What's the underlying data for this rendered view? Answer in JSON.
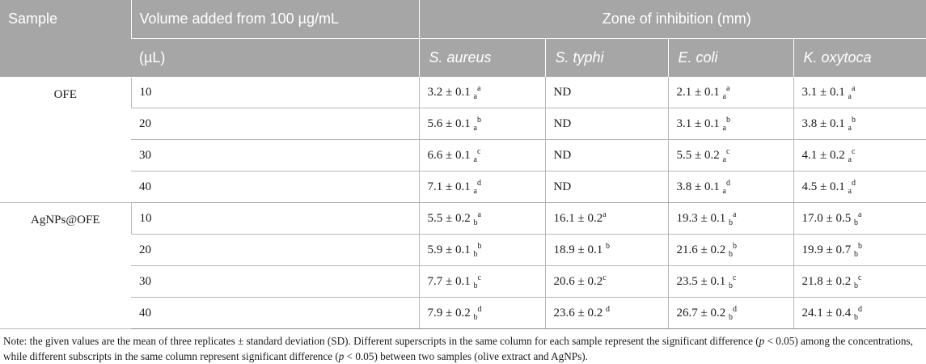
{
  "header": {
    "sample": "Sample",
    "volume_line1": "Volume added from 100 µg/mL",
    "volume_line2": "(µL)",
    "zone": "Zone of inhibition (mm)",
    "organisms": [
      "S. aureus",
      "S. typhi",
      "E. coli",
      "K. oxytoca"
    ]
  },
  "groups": [
    {
      "sample": "OFE",
      "rows": [
        {
          "volume": "10",
          "cells": [
            {
              "v": "3.2 ± 0.1 ",
              "sub": "a",
              "sup": "a"
            },
            {
              "v": "ND",
              "sub": "",
              "sup": ""
            },
            {
              "v": "2.1 ± 0.1 ",
              "sub": "a",
              "sup": "a"
            },
            {
              "v": "3.1 ± 0.1 ",
              "sub": "a",
              "sup": "a"
            }
          ]
        },
        {
          "volume": "20",
          "cells": [
            {
              "v": "5.6 ± 0.1 ",
              "sub": "a",
              "sup": "b"
            },
            {
              "v": "ND",
              "sub": "",
              "sup": ""
            },
            {
              "v": "3.1 ± 0.1 ",
              "sub": "a",
              "sup": "b"
            },
            {
              "v": "3.8 ± 0.1 ",
              "sub": "a",
              "sup": "b"
            }
          ]
        },
        {
          "volume": "30",
          "cells": [
            {
              "v": "6.6 ± 0.1 ",
              "sub": "a",
              "sup": "c"
            },
            {
              "v": "ND",
              "sub": "",
              "sup": ""
            },
            {
              "v": "5.5 ± 0.2 ",
              "sub": "a",
              "sup": "c"
            },
            {
              "v": "4.1 ± 0.2 ",
              "sub": "a",
              "sup": "c"
            }
          ]
        },
        {
          "volume": "40",
          "cells": [
            {
              "v": "7.1 ± 0.1 ",
              "sub": "a",
              "sup": "d"
            },
            {
              "v": "ND",
              "sub": "",
              "sup": ""
            },
            {
              "v": "3.8 ± 0.1 ",
              "sub": "a",
              "sup": "d"
            },
            {
              "v": "4.5 ± 0.1 ",
              "sub": "a",
              "sup": "d"
            }
          ]
        }
      ]
    },
    {
      "sample": "AgNPs@OFE",
      "rows": [
        {
          "volume": "10",
          "cells": [
            {
              "v": "5.5 ± 0.2 ",
              "sub": "b",
              "sup": "a"
            },
            {
              "v": "16.1 ± 0.2",
              "sub": "",
              "sup": "a"
            },
            {
              "v": "19.3 ± 0.1 ",
              "sub": "b",
              "sup": "a"
            },
            {
              "v": "17.0 ± 0.5 ",
              "sub": "b",
              "sup": "a"
            }
          ]
        },
        {
          "volume": "20",
          "cells": [
            {
              "v": "5.9 ± 0.1 ",
              "sub": "b",
              "sup": "b"
            },
            {
              "v": "18.9 ± 0.1 ",
              "sub": "",
              "sup": "b"
            },
            {
              "v": "21.6 ± 0.2 ",
              "sub": "b",
              "sup": "b"
            },
            {
              "v": "19.9 ± 0.7 ",
              "sub": "b",
              "sup": "b"
            }
          ]
        },
        {
          "volume": "30",
          "cells": [
            {
              "v": "7.7 ± 0.1 ",
              "sub": "b",
              "sup": "c"
            },
            {
              "v": "20.6 ± 0.2",
              "sub": "",
              "sup": "c"
            },
            {
              "v": "23.5 ± 0.1 ",
              "sub": "b",
              "sup": "c"
            },
            {
              "v": "21.8 ± 0.2 ",
              "sub": "b",
              "sup": "c"
            }
          ]
        },
        {
          "volume": "40",
          "cells": [
            {
              "v": "7.9 ± 0.2 ",
              "sub": "b",
              "sup": "d"
            },
            {
              "v": "23.6 ± 0.2 ",
              "sub": "",
              "sup": "d"
            },
            {
              "v": "26.7 ± 0.2 ",
              "sub": "b",
              "sup": "d"
            },
            {
              "v": "24.1 ± 0.4 ",
              "sub": "b",
              "sup": "d"
            }
          ]
        }
      ]
    }
  ],
  "note": {
    "t1": "Note: the given values are the mean of three replicates ± standard deviation (SD). Different superscripts in the same column for each sample represent the significant difference (",
    "p": "p",
    "t2": " < 0.05) among the concentrations, while different subscripts in the same column represent significant difference (",
    "t3": " < 0.05) between two samples (olive extract and AgNPs)."
  }
}
